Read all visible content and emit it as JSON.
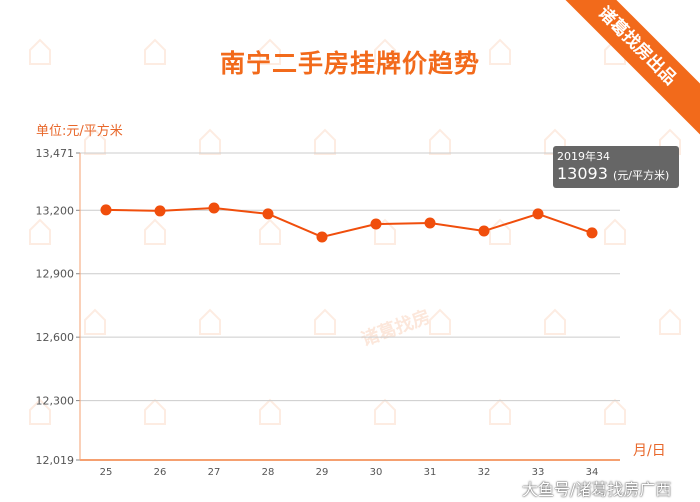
{
  "header": {
    "title": "南宁二手房挂牌价趋势",
    "ribbon": "诸葛找房出品",
    "credit": "大鱼号/诸葛找房广西",
    "watermark": "诸葛找房"
  },
  "tooltip": {
    "period": "2019年34",
    "value": "13093",
    "unit": "(元/平方米)"
  },
  "colors": {
    "accent": "#f26a1b",
    "line": "#f04e0c",
    "grid": "#cccccc"
  },
  "chart_data": {
    "type": "line",
    "title": "南宁二手房挂牌价趋势",
    "ylabel": "单位:元/平方米",
    "xlabel": "月/日",
    "categories": [
      "25",
      "26",
      "27",
      "28",
      "29",
      "30",
      "31",
      "32",
      "33",
      "34"
    ],
    "values": [
      13202,
      13197,
      13211,
      13183,
      13074,
      13135,
      13140,
      13102,
      13183,
      13093
    ],
    "ylim": [
      12019,
      13471
    ],
    "yticks": [
      "12,019",
      "12,300",
      "12,600",
      "12,900",
      "13,200",
      "13,471"
    ],
    "ytick_values": [
      12019,
      12300,
      12600,
      12900,
      13200,
      13471
    ],
    "grid": true
  }
}
